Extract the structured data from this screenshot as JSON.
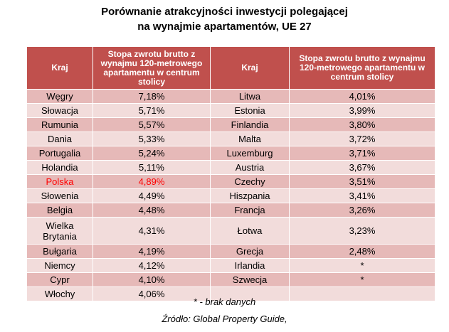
{
  "chart_data": {
    "type": "table",
    "title_line1": "Porównanie atrakcyjności inwestycji polegającej",
    "title_line2": "na wynajmie apartamentów, UE 27",
    "headers": {
      "country": "Kraj",
      "yield": "Stopa zwrotu brutto z wynajmu 120-metrowego apartamentu  w centrum stolicy"
    },
    "highlight_color": "#ff0000",
    "left_rows": [
      {
        "country": "Węgry",
        "value": "7,18%"
      },
      {
        "country": "Słowacja",
        "value": "5,71%"
      },
      {
        "country": "Rumunia",
        "value": "5,57%"
      },
      {
        "country": "Dania",
        "value": "5,33%"
      },
      {
        "country": "Portugalia",
        "value": "5,24%"
      },
      {
        "country": "Holandia",
        "value": "5,11%"
      },
      {
        "country": "Polska",
        "value": "4,89%"
      },
      {
        "country": "Słowenia",
        "value": "4,49%"
      },
      {
        "country": "Belgia",
        "value": "4,48%"
      },
      {
        "country": "Wielka Brytania",
        "value": "4,31%"
      },
      {
        "country": "Bułgaria",
        "value": "4,19%"
      },
      {
        "country": "Niemcy",
        "value": "4,12%"
      },
      {
        "country": "Cypr",
        "value": "4,10%"
      },
      {
        "country": "Włochy",
        "value": "4,06%"
      }
    ],
    "right_rows": [
      {
        "country": "Litwa",
        "value": "4,01%"
      },
      {
        "country": "Estonia",
        "value": "3,99%"
      },
      {
        "country": "Finlandia",
        "value": "3,80%"
      },
      {
        "country": "Malta",
        "value": "3,72%"
      },
      {
        "country": "Luxemburg",
        "value": "3,71%"
      },
      {
        "country": "Austria",
        "value": "3,67%"
      },
      {
        "country": "Czechy",
        "value": "3,51%"
      },
      {
        "country": "Hiszpania",
        "value": "3,41%"
      },
      {
        "country": "Francja",
        "value": "3,26%"
      },
      {
        "country": "Łotwa",
        "value": "3,23%"
      },
      {
        "country": "Grecja",
        "value": "2,48%"
      },
      {
        "country": "Irlandia",
        "value": "*"
      },
      {
        "country": "Szwecja",
        "value": "*"
      },
      {
        "country": "",
        "value": ""
      }
    ],
    "footnote": "* - brak danych",
    "source": "Źródło: Global Property  Guide,"
  }
}
